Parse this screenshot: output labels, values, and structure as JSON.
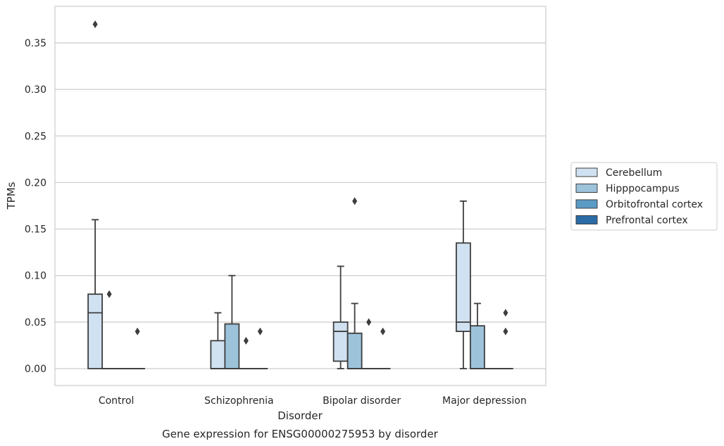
{
  "chart_data": {
    "type": "box",
    "caption": "Gene expression for ENSG00000275953 by disorder",
    "xlabel": "Disorder",
    "ylabel": "TPMs",
    "ylim": [
      -0.018,
      0.39
    ],
    "yticks": [
      "0.00",
      "0.05",
      "0.10",
      "0.15",
      "0.20",
      "0.25",
      "0.30",
      "0.35"
    ],
    "grid": "horizontal",
    "legend_placement": "right",
    "categories": [
      "Control",
      "Schizophrenia",
      "Bipolar disorder",
      "Major depression"
    ],
    "series": [
      {
        "name": "Cerebellum",
        "color": "#d0e1f1",
        "boxes": [
          {
            "min": 0.0,
            "q1": 0.0,
            "median": 0.06,
            "q3": 0.08,
            "max": 0.16,
            "outliers": [
              0.37
            ]
          },
          {
            "min": 0.0,
            "q1": 0.0,
            "median": 0.0,
            "q3": 0.03,
            "max": 0.06,
            "outliers": []
          },
          {
            "min": 0.0,
            "q1": 0.008,
            "median": 0.04,
            "q3": 0.05,
            "max": 0.11,
            "outliers": []
          },
          {
            "min": 0.0,
            "q1": 0.04,
            "median": 0.05,
            "q3": 0.135,
            "max": 0.18,
            "outliers": []
          }
        ]
      },
      {
        "name": "Hipppocampus",
        "color": "#9dc3db",
        "boxes": [
          {
            "min": 0.0,
            "q1": 0.0,
            "median": 0.0,
            "q3": 0.0,
            "max": 0.0,
            "outliers": [
              0.08
            ]
          },
          {
            "min": 0.0,
            "q1": 0.0,
            "median": 0.0,
            "q3": 0.048,
            "max": 0.1,
            "outliers": []
          },
          {
            "min": 0.0,
            "q1": 0.0,
            "median": 0.0,
            "q3": 0.038,
            "max": 0.07,
            "outliers": [
              0.18
            ]
          },
          {
            "min": 0.0,
            "q1": 0.0,
            "median": 0.0,
            "q3": 0.046,
            "max": 0.07,
            "outliers": []
          }
        ]
      },
      {
        "name": "Orbitofrontal cortex",
        "color": "#5a9bc6",
        "boxes": [
          {
            "min": 0.0,
            "q1": 0.0,
            "median": 0.0,
            "q3": 0.0,
            "max": 0.0,
            "outliers": []
          },
          {
            "min": 0.0,
            "q1": 0.0,
            "median": 0.0,
            "q3": 0.0,
            "max": 0.0,
            "outliers": [
              0.03
            ]
          },
          {
            "min": 0.0,
            "q1": 0.0,
            "median": 0.0,
            "q3": 0.0,
            "max": 0.0,
            "outliers": [
              0.05
            ]
          },
          {
            "min": 0.0,
            "q1": 0.0,
            "median": 0.0,
            "q3": 0.0,
            "max": 0.0,
            "outliers": []
          }
        ]
      },
      {
        "name": "Prefrontal cortex",
        "color": "#2b6ba6",
        "boxes": [
          {
            "min": 0.0,
            "q1": 0.0,
            "median": 0.0,
            "q3": 0.0,
            "max": 0.0,
            "outliers": [
              0.04
            ]
          },
          {
            "min": 0.0,
            "q1": 0.0,
            "median": 0.0,
            "q3": 0.0,
            "max": 0.0,
            "outliers": [
              0.04
            ]
          },
          {
            "min": 0.0,
            "q1": 0.0,
            "median": 0.0,
            "q3": 0.0,
            "max": 0.0,
            "outliers": [
              0.04
            ]
          },
          {
            "min": 0.0,
            "q1": 0.0,
            "median": 0.0,
            "q3": 0.0,
            "max": 0.0,
            "outliers": [
              0.04,
              0.06
            ]
          }
        ]
      }
    ]
  }
}
